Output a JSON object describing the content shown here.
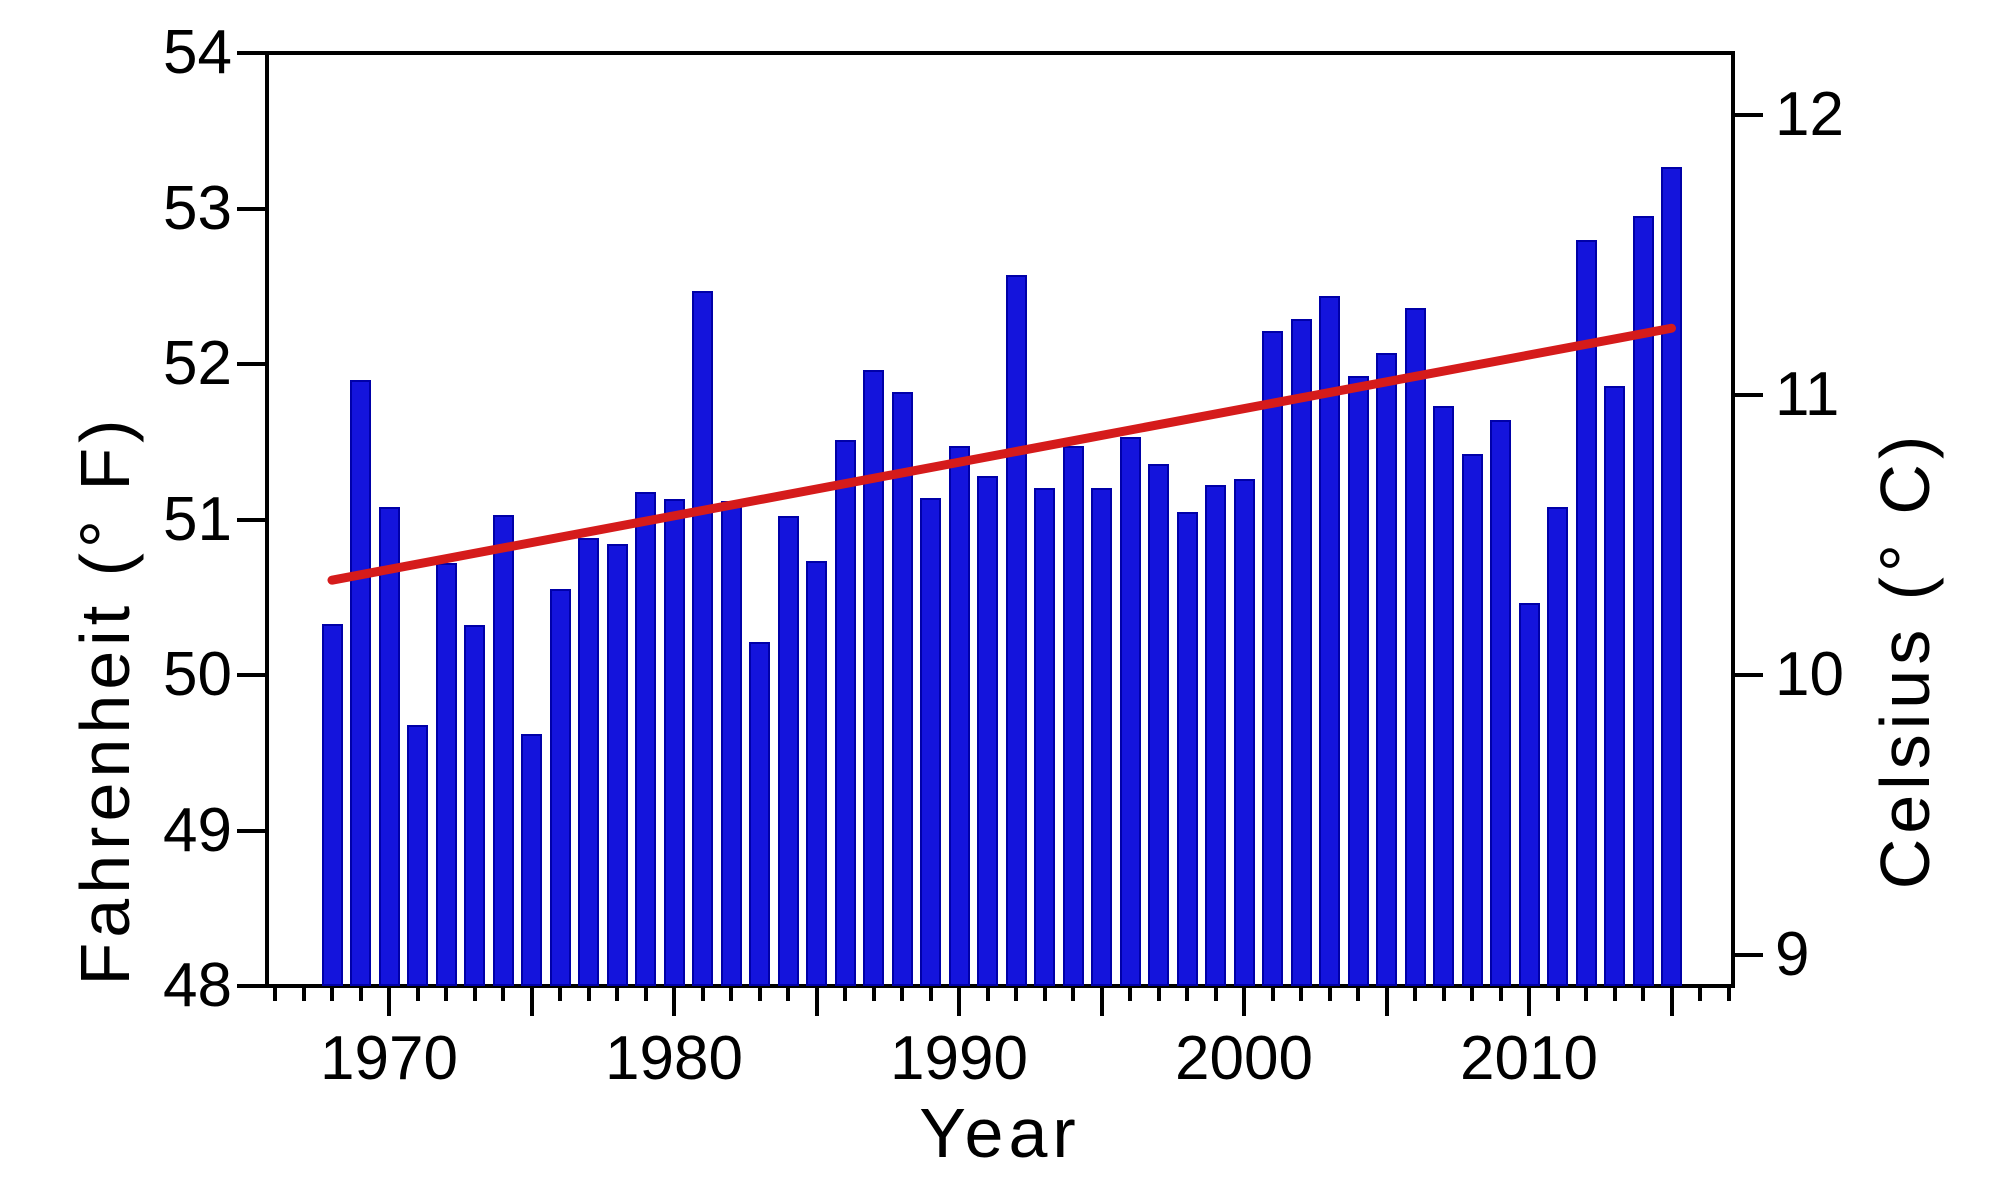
{
  "chart_data": {
    "type": "bar",
    "title": "",
    "xlabel": "Year",
    "ylabel_left": "Fahrenheit (° F)",
    "ylabel_right": "Celsius (° C)",
    "legend": "none",
    "grid": "off",
    "fahrenheit_axis": {
      "min": 48,
      "max": 54,
      "tick_labels": [
        "48",
        "49",
        "50",
        "51",
        "52",
        "53",
        "54"
      ],
      "tick_values": [
        48,
        49,
        50,
        51,
        52,
        53,
        54
      ]
    },
    "celsius_axis": {
      "tick_labels": [
        "9",
        "10",
        "11",
        "12"
      ],
      "tick_values": [
        9,
        10,
        11,
        12
      ]
    },
    "x_axis": {
      "minor_tick_start_year": 1966,
      "minor_tick_end_year": 2017,
      "medium_tick_every_years": 5,
      "labeled_ticks": [
        1970,
        1980,
        1990,
        2000,
        2010
      ],
      "labeled_tick_labels": [
        "1970",
        "1980",
        "1990",
        "2000",
        "2010"
      ]
    },
    "categories": [
      1968,
      1969,
      1970,
      1971,
      1972,
      1973,
      1974,
      1975,
      1976,
      1977,
      1978,
      1979,
      1980,
      1981,
      1982,
      1983,
      1984,
      1985,
      1986,
      1987,
      1988,
      1989,
      1990,
      1991,
      1992,
      1993,
      1994,
      1995,
      1996,
      1997,
      1998,
      1999,
      2000,
      2001,
      2002,
      2003,
      2004,
      2005,
      2006,
      2007,
      2008,
      2009,
      2010,
      2011,
      2012,
      2013,
      2014,
      2015
    ],
    "values": [
      50.33,
      51.9,
      51.08,
      49.68,
      50.72,
      50.32,
      51.03,
      49.62,
      50.55,
      50.88,
      50.84,
      51.18,
      51.13,
      52.47,
      51.12,
      50.21,
      51.02,
      50.73,
      51.51,
      51.96,
      51.82,
      51.14,
      51.47,
      51.28,
      52.57,
      51.2,
      51.47,
      51.2,
      51.53,
      51.36,
      51.05,
      51.22,
      51.26,
      52.21,
      52.29,
      52.44,
      51.92,
      52.07,
      52.36,
      51.73,
      51.42,
      51.64,
      50.46,
      51.08,
      52.8,
      51.86,
      52.95,
      53.27
    ],
    "values_unit": "degrees Fahrenheit",
    "trend_line": {
      "start": {
        "year": 1968,
        "fahrenheit": 50.61
      },
      "end": {
        "year": 2015,
        "fahrenheit": 52.23
      }
    },
    "colors": {
      "bar_fill": "#1414dc",
      "bar_edge": "#0000a8",
      "trend_line": "#d51b1b",
      "axis": "#000000",
      "background": "#ffffff"
    }
  }
}
